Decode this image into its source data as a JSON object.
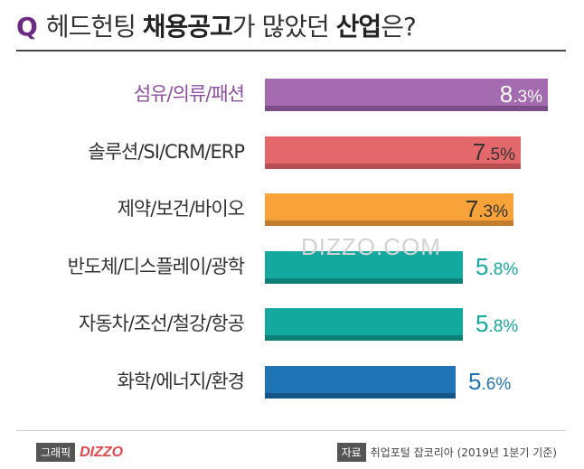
{
  "header": {
    "q_mark": "Q",
    "title_part1": "헤드헌팅 ",
    "title_bold1": "채용공고",
    "title_part2": "가 많았던 ",
    "title_bold2": "산업",
    "title_part3": "은?"
  },
  "chart_data": {
    "type": "bar",
    "orientation": "horizontal",
    "title": "헤드헌팅 채용공고가 많았던 산업은?",
    "categories": [
      "섬유/의류/패션",
      "솔루션/SI/CRM/ERP",
      "제약/보건/바이오",
      "반도체/디스플레이/광학",
      "자동차/조선/철강/항공",
      "화학/에너지/환경"
    ],
    "values": [
      8.3,
      7.5,
      7.3,
      5.8,
      5.8,
      5.6
    ],
    "value_labels": [
      "8.3%",
      "7.5%",
      "7.3%",
      "5.8%",
      "5.8%",
      "5.6%"
    ],
    "unit": "%",
    "xlim": [
      0,
      8.3
    ],
    "colors": [
      "#a46bb1",
      "#e4686b",
      "#f7a33a",
      "#14a99e",
      "#14a99e",
      "#1f74b6"
    ],
    "shadow_colors": [
      "#7a4d88",
      "#b64f54",
      "#c07d2c",
      "#0e7f77",
      "#0e7f77",
      "#15568a"
    ],
    "label_colors": [
      "#8e4fa0",
      "#333333",
      "#333333",
      "#333333",
      "#333333",
      "#333333"
    ],
    "value_text_colors": [
      "#ffffff",
      "#333333",
      "#333333",
      "#14a99e",
      "#14a99e",
      "#1f74b6"
    ],
    "value_inside": [
      true,
      true,
      true,
      false,
      false,
      false
    ],
    "xlabel": "",
    "ylabel": "",
    "grid": false
  },
  "watermark": "DIZZO.COM",
  "footer": {
    "credit_tag": "그래픽",
    "credit_logo": "DIZZO",
    "source_tag": "자료",
    "source_text": "취업포털 잡코리아 (2019년 1분기 기준)"
  }
}
